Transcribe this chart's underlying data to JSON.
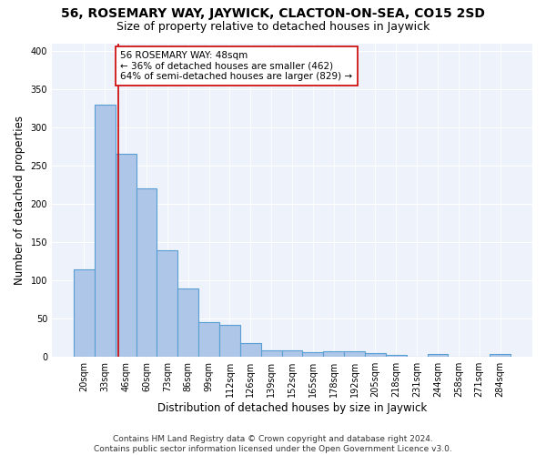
{
  "title": "56, ROSEMARY WAY, JAYWICK, CLACTON-ON-SEA, CO15 2SD",
  "subtitle": "Size of property relative to detached houses in Jaywick",
  "xlabel": "Distribution of detached houses by size in Jaywick",
  "ylabel": "Number of detached properties",
  "categories": [
    "20sqm",
    "33sqm",
    "46sqm",
    "60sqm",
    "73sqm",
    "86sqm",
    "99sqm",
    "112sqm",
    "126sqm",
    "139sqm",
    "152sqm",
    "165sqm",
    "178sqm",
    "192sqm",
    "205sqm",
    "218sqm",
    "231sqm",
    "244sqm",
    "258sqm",
    "271sqm",
    "284sqm"
  ],
  "values": [
    115,
    330,
    265,
    220,
    140,
    90,
    45,
    42,
    18,
    9,
    8,
    6,
    7,
    7,
    5,
    3,
    0,
    4,
    0,
    0,
    4
  ],
  "bar_color": "#aec6e8",
  "bar_edge_color": "#5a9fd4",
  "bar_linewidth": 0.8,
  "vline_x": 1.65,
  "vline_color": "#cc0000",
  "annotation_line1": "56 ROSEMARY WAY: 48sqm",
  "annotation_line2": "← 36% of detached houses are smaller (462)",
  "annotation_line3": "64% of semi-detached houses are larger (829) →",
  "annotation_box_color": "#ffffff",
  "annotation_box_edgecolor": "#cc0000",
  "ylim": [
    0,
    410
  ],
  "yticks": [
    0,
    50,
    100,
    150,
    200,
    250,
    300,
    350,
    400
  ],
  "background_color": "#edf2fb",
  "footer1": "Contains HM Land Registry data © Crown copyright and database right 2024.",
  "footer2": "Contains public sector information licensed under the Open Government Licence v3.0.",
  "title_fontsize": 10,
  "subtitle_fontsize": 9,
  "xlabel_fontsize": 8.5,
  "ylabel_fontsize": 8.5,
  "tick_fontsize": 7,
  "annotation_fontsize": 7.5,
  "footer_fontsize": 6.5
}
